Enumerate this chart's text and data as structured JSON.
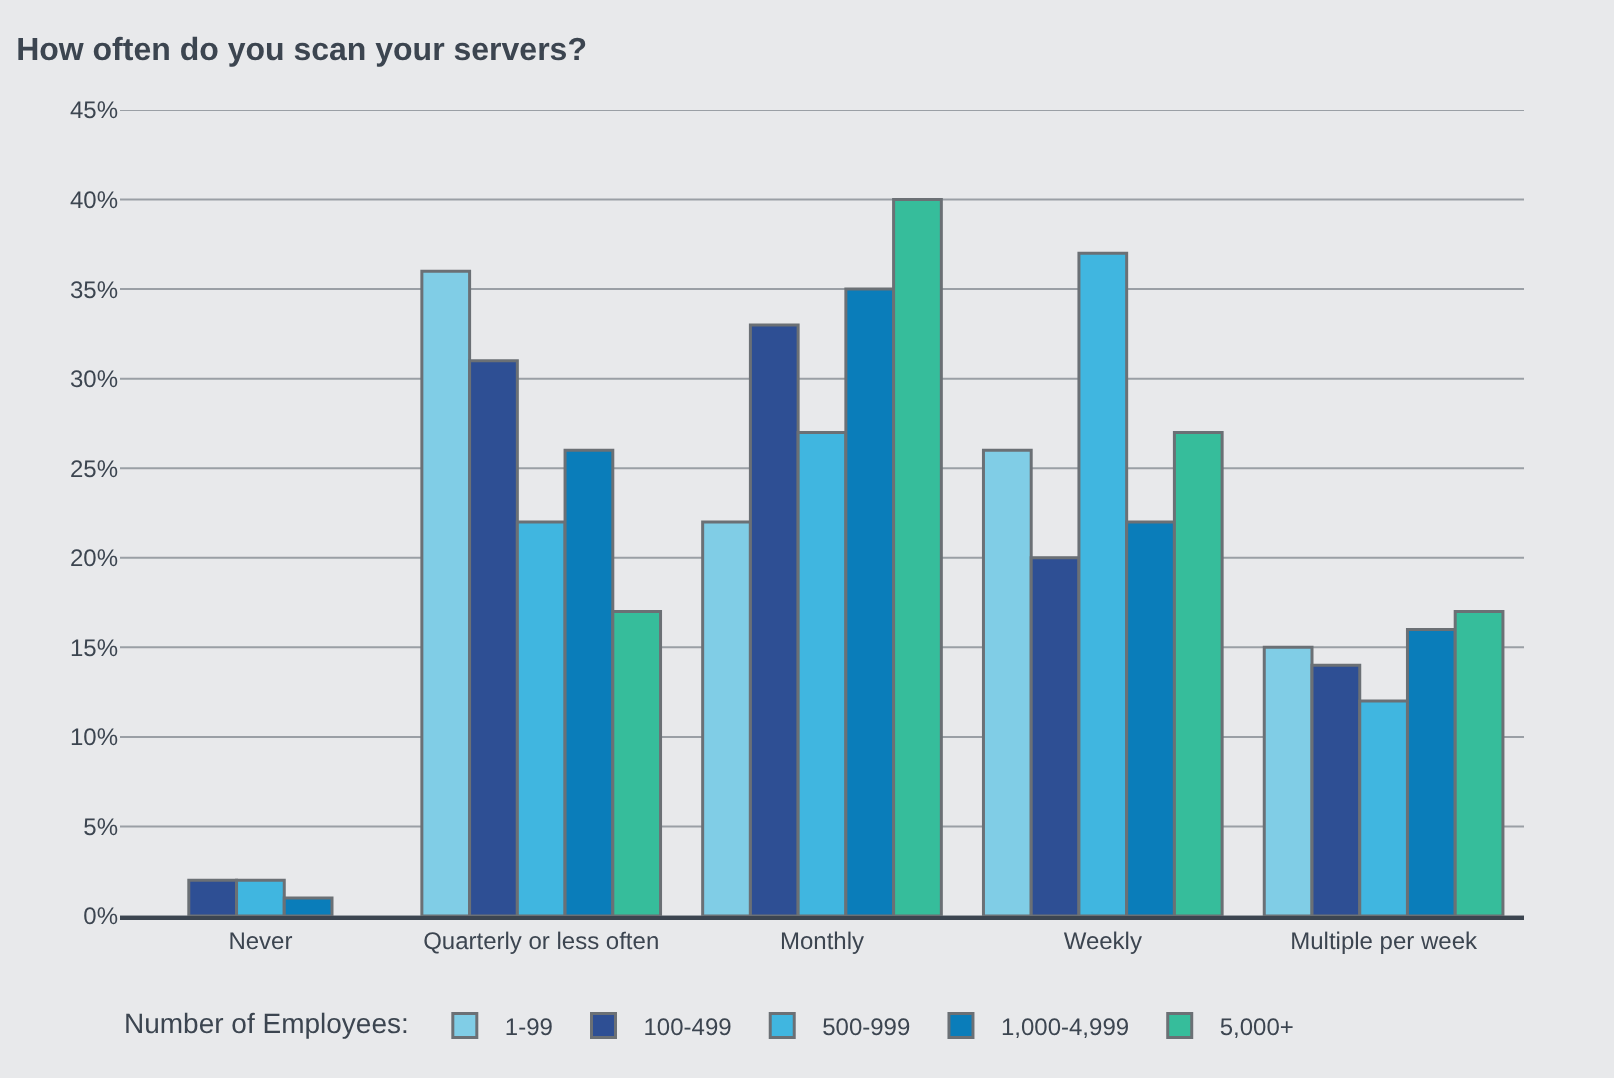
{
  "chart_data": {
    "type": "bar",
    "title": "How often do you scan your servers?",
    "legend_title": "Number of Employees:",
    "categories": [
      "Never",
      "Quarterly or less often",
      "Monthly",
      "Weekly",
      "Multiple per week"
    ],
    "series": [
      {
        "name": "1-99",
        "color": "#80cde6",
        "values": [
          null,
          36,
          22,
          26,
          15
        ]
      },
      {
        "name": "100-499",
        "color": "#2e4f94",
        "values": [
          2,
          31,
          33,
          20,
          14
        ]
      },
      {
        "name": "500-999",
        "color": "#40b6e0",
        "values": [
          2,
          22,
          27,
          37,
          12
        ]
      },
      {
        "name": "1,000-4,999",
        "color": "#0a7dba",
        "values": [
          1,
          26,
          35,
          22,
          16
        ]
      },
      {
        "name": "5,000+",
        "color": "#36bd9b",
        "values": [
          null,
          17,
          40,
          27,
          17
        ]
      }
    ],
    "ylim": [
      0,
      45
    ],
    "yticks": [
      {
        "value": 0,
        "label": "0%"
      },
      {
        "value": 5,
        "label": "5%"
      },
      {
        "value": 10,
        "label": "10%"
      },
      {
        "value": 15,
        "label": "15%"
      },
      {
        "value": 20,
        "label": "20%"
      },
      {
        "value": 25,
        "label": "25%"
      },
      {
        "value": 30,
        "label": "30%"
      },
      {
        "value": 35,
        "label": "35%"
      },
      {
        "value": 40,
        "label": "40%"
      },
      {
        "value": 45,
        "label": "45%"
      }
    ],
    "grid": "y",
    "legend": "bottom"
  }
}
